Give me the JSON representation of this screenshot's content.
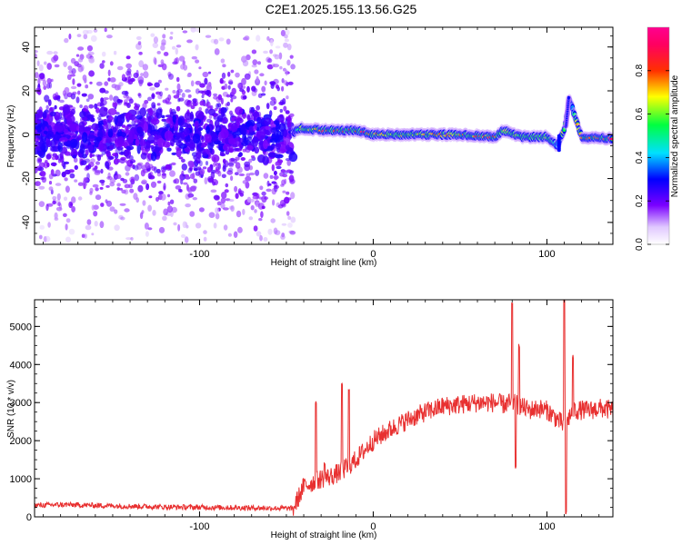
{
  "title": "C2E1.2025.155.13.56.G25",
  "chart_data": [
    {
      "type": "heatmap",
      "title": "C2E1.2025.155.13.56.G25",
      "xlabel": "Height of straight line (km)",
      "ylabel": "Frequency (Hz)",
      "xlim": [
        -195,
        138
      ],
      "ylim": [
        -50,
        49
      ],
      "xticks": [
        -100,
        0,
        100
      ],
      "xtick_labels": [
        "-100",
        "0",
        "100"
      ],
      "yticks": [
        -40,
        -20,
        0,
        20,
        40
      ],
      "ytick_labels": [
        "-40",
        "-20",
        "0",
        "20",
        "40"
      ],
      "grid": false,
      "colorbar": {
        "label": "Normalized spectral amplitude",
        "range": [
          0,
          1
        ],
        "ticks": [
          0.0,
          0.2,
          0.4,
          0.6,
          0.8
        ],
        "tick_labels": [
          "0.0",
          "0.2",
          "0.4",
          "0.6",
          "0.8"
        ],
        "colormap": "rainbow (violet-blue-cyan-green-yellow-red-magenta)"
      },
      "noise_region": {
        "x_range": [
          -195,
          -46
        ],
        "freq_spread": [
          -50,
          48
        ],
        "typical_amplitude": 0.15
      },
      "signal_band": [
        {
          "x": -190,
          "freq": 0,
          "amp": 0.1
        },
        {
          "x": -120,
          "freq": 1,
          "amp": 0.12
        },
        {
          "x": -46,
          "freq": 1,
          "amp": 0.15
        },
        {
          "x": -42,
          "freq": 3,
          "amp": 0.6
        },
        {
          "x": -30,
          "freq": 2,
          "amp": 0.8
        },
        {
          "x": -20,
          "freq": 2,
          "amp": 0.85
        },
        {
          "x": -10,
          "freq": 2,
          "amp": 0.85
        },
        {
          "x": 0,
          "freq": 0,
          "amp": 0.85
        },
        {
          "x": 10,
          "freq": 0,
          "amp": 0.6
        },
        {
          "x": 30,
          "freq": 0,
          "amp": 0.7
        },
        {
          "x": 50,
          "freq": 0,
          "amp": 0.7
        },
        {
          "x": 70,
          "freq": -1,
          "amp": 0.8
        },
        {
          "x": 75,
          "freq": 2,
          "amp": 0.6
        },
        {
          "x": 85,
          "freq": -1,
          "amp": 0.6
        },
        {
          "x": 100,
          "freq": -1,
          "amp": 0.6
        },
        {
          "x": 106,
          "freq": -5,
          "amp": 0.4
        },
        {
          "x": 110,
          "freq": 2,
          "amp": 0.75
        },
        {
          "x": 113,
          "freq": 16,
          "amp": 0.3
        },
        {
          "x": 120,
          "freq": -1,
          "amp": 0.8
        },
        {
          "x": 138,
          "freq": -2,
          "amp": 0.9
        }
      ]
    },
    {
      "type": "line",
      "xlabel": "Height of straight line (km)",
      "ylabel": "SNR (10 * v/v)",
      "xlim": [
        -195,
        138
      ],
      "ylim": [
        0,
        5700
      ],
      "xticks": [
        -100,
        0,
        100
      ],
      "xtick_labels": [
        "-100",
        "0",
        "100"
      ],
      "yticks": [
        0,
        1000,
        2000,
        3000,
        4000,
        5000
      ],
      "ytick_labels": [
        "0",
        "1000",
        "2000",
        "3000",
        "4000",
        "5000"
      ],
      "grid": false,
      "line_color": "#e83030",
      "series": [
        {
          "x": [
            -195,
            -180,
            -160,
            -140,
            -120,
            -100,
            -80,
            -60,
            -46,
            -40,
            -35,
            -30,
            -25,
            -20,
            -15,
            -10,
            -5,
            0,
            10,
            20,
            30,
            40,
            50,
            60,
            70,
            75,
            80,
            85,
            90,
            95,
            100,
            105,
            110,
            115,
            120,
            125,
            130,
            138
          ],
          "y": [
            300,
            320,
            300,
            280,
            260,
            250,
            240,
            230,
            220,
            800,
            900,
            1000,
            1050,
            1150,
            1300,
            1500,
            1750,
            2000,
            2300,
            2550,
            2750,
            2900,
            2950,
            3000,
            3000,
            2950,
            3000,
            2900,
            2800,
            2850,
            2800,
            2600,
            2400,
            2800,
            2800,
            2800,
            2850,
            2800
          ]
        }
      ],
      "spikes": [
        {
          "x": -33,
          "y": 3000
        },
        {
          "x": -28,
          "y": 1400
        },
        {
          "x": -18,
          "y": 3500
        },
        {
          "x": -14,
          "y": 3300
        },
        {
          "x": 80,
          "y": 5600
        },
        {
          "x": 82,
          "y": 1300
        },
        {
          "x": 84,
          "y": 4500
        },
        {
          "x": 110,
          "y": 5700
        },
        {
          "x": 111,
          "y": 100
        },
        {
          "x": 115,
          "y": 4200
        }
      ]
    }
  ]
}
